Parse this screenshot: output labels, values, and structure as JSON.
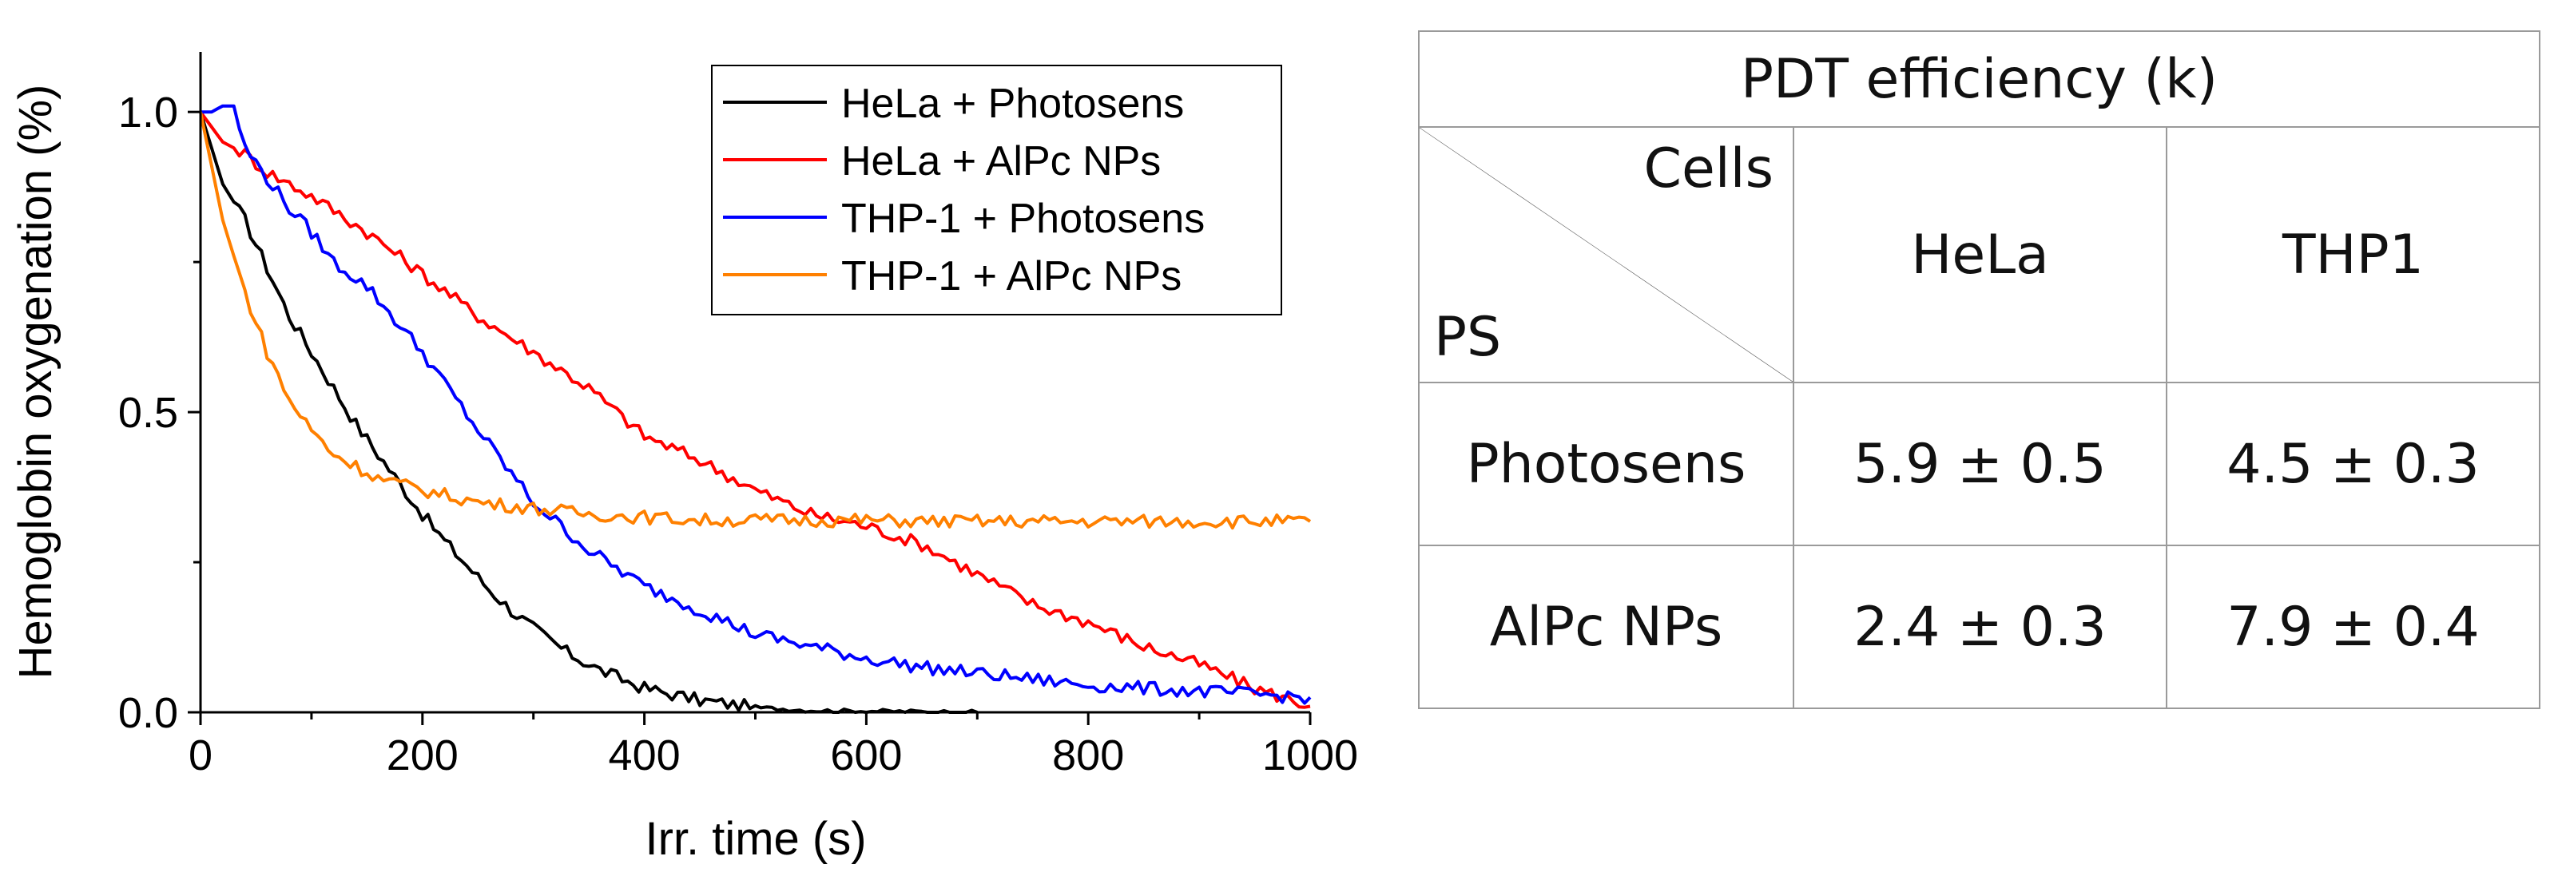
{
  "chart_data": {
    "type": "line",
    "xlabel": "Irr. time (s)",
    "ylabel": "Hemoglobin oxygenation (%)",
    "xlim": [
      0,
      1000
    ],
    "ylim": [
      0,
      1.1
    ],
    "x_ticks": [
      0,
      200,
      400,
      600,
      800,
      1000
    ],
    "x_tick_labels": [
      "0",
      "200",
      "400",
      "600",
      "800",
      "1000"
    ],
    "y_ticks": [
      0.0,
      0.5,
      1.0
    ],
    "y_tick_labels": [
      "0.0",
      "0.5",
      "1.0"
    ],
    "grid": false,
    "legend_position": "top-right",
    "series": [
      {
        "name": "HeLa + Photosens",
        "color": "#000000",
        "x": [
          0,
          20,
          40,
          60,
          80,
          100,
          120,
          140,
          160,
          180,
          200,
          220,
          240,
          260,
          280,
          300,
          330,
          360,
          400,
          450,
          500,
          550,
          600,
          650,
          700
        ],
        "y": [
          1.0,
          0.88,
          0.82,
          0.74,
          0.66,
          0.6,
          0.54,
          0.48,
          0.43,
          0.38,
          0.33,
          0.285,
          0.245,
          0.205,
          0.17,
          0.14,
          0.1,
          0.07,
          0.04,
          0.02,
          0.008,
          0.003,
          0.002,
          0.001,
          0.0
        ]
      },
      {
        "name": "HeLa + AlPc NPs",
        "color": "#ff0000",
        "x": [
          0,
          20,
          40,
          60,
          100,
          150,
          200,
          250,
          300,
          350,
          400,
          450,
          500,
          550,
          600,
          650,
          700,
          750,
          800,
          850,
          900,
          950,
          1000
        ],
        "y": [
          1.0,
          0.95,
          0.93,
          0.9,
          0.86,
          0.8,
          0.73,
          0.66,
          0.6,
          0.54,
          0.46,
          0.42,
          0.37,
          0.33,
          0.31,
          0.28,
          0.23,
          0.18,
          0.15,
          0.11,
          0.08,
          0.04,
          0.01
        ]
      },
      {
        "name": "THP-1 + Photosens",
        "color": "#0000ff",
        "x": [
          0,
          10,
          20,
          30,
          40,
          60,
          80,
          100,
          120,
          150,
          200,
          250,
          300,
          350,
          400,
          450,
          500,
          550,
          600,
          650,
          700,
          750,
          800,
          850,
          900,
          950,
          1000
        ],
        "y": [
          1.0,
          1.0,
          1.01,
          1.01,
          0.94,
          0.89,
          0.84,
          0.8,
          0.75,
          0.71,
          0.6,
          0.47,
          0.35,
          0.27,
          0.21,
          0.17,
          0.13,
          0.11,
          0.09,
          0.075,
          0.065,
          0.055,
          0.045,
          0.04,
          0.035,
          0.03,
          0.025
        ]
      },
      {
        "name": "THP-1 + AlPc NPs",
        "color": "#ff8000",
        "x": [
          0,
          20,
          40,
          60,
          80,
          100,
          120,
          140,
          160,
          180,
          200,
          250,
          300,
          350,
          400,
          450,
          500,
          550,
          600,
          650,
          700,
          750,
          800,
          850,
          900,
          950,
          1000
        ],
        "y": [
          1.0,
          0.82,
          0.7,
          0.6,
          0.52,
          0.47,
          0.43,
          0.41,
          0.39,
          0.38,
          0.37,
          0.35,
          0.34,
          0.33,
          0.325,
          0.32,
          0.32,
          0.32,
          0.32,
          0.318,
          0.318,
          0.318,
          0.318,
          0.318,
          0.318,
          0.318,
          0.318
        ]
      }
    ]
  },
  "table": {
    "title": "PDT efficiency (k)",
    "corner_top": "Cells",
    "corner_bottom": "PS",
    "columns": [
      "HeLa",
      "THP1"
    ],
    "rows": [
      {
        "label": "Photosens",
        "values": [
          "5.9 ± 0.5",
          "4.5 ± 0.3"
        ]
      },
      {
        "label": "AlPc NPs",
        "values": [
          "2.4 ± 0.3",
          "7.9 ± 0.4"
        ]
      }
    ]
  }
}
